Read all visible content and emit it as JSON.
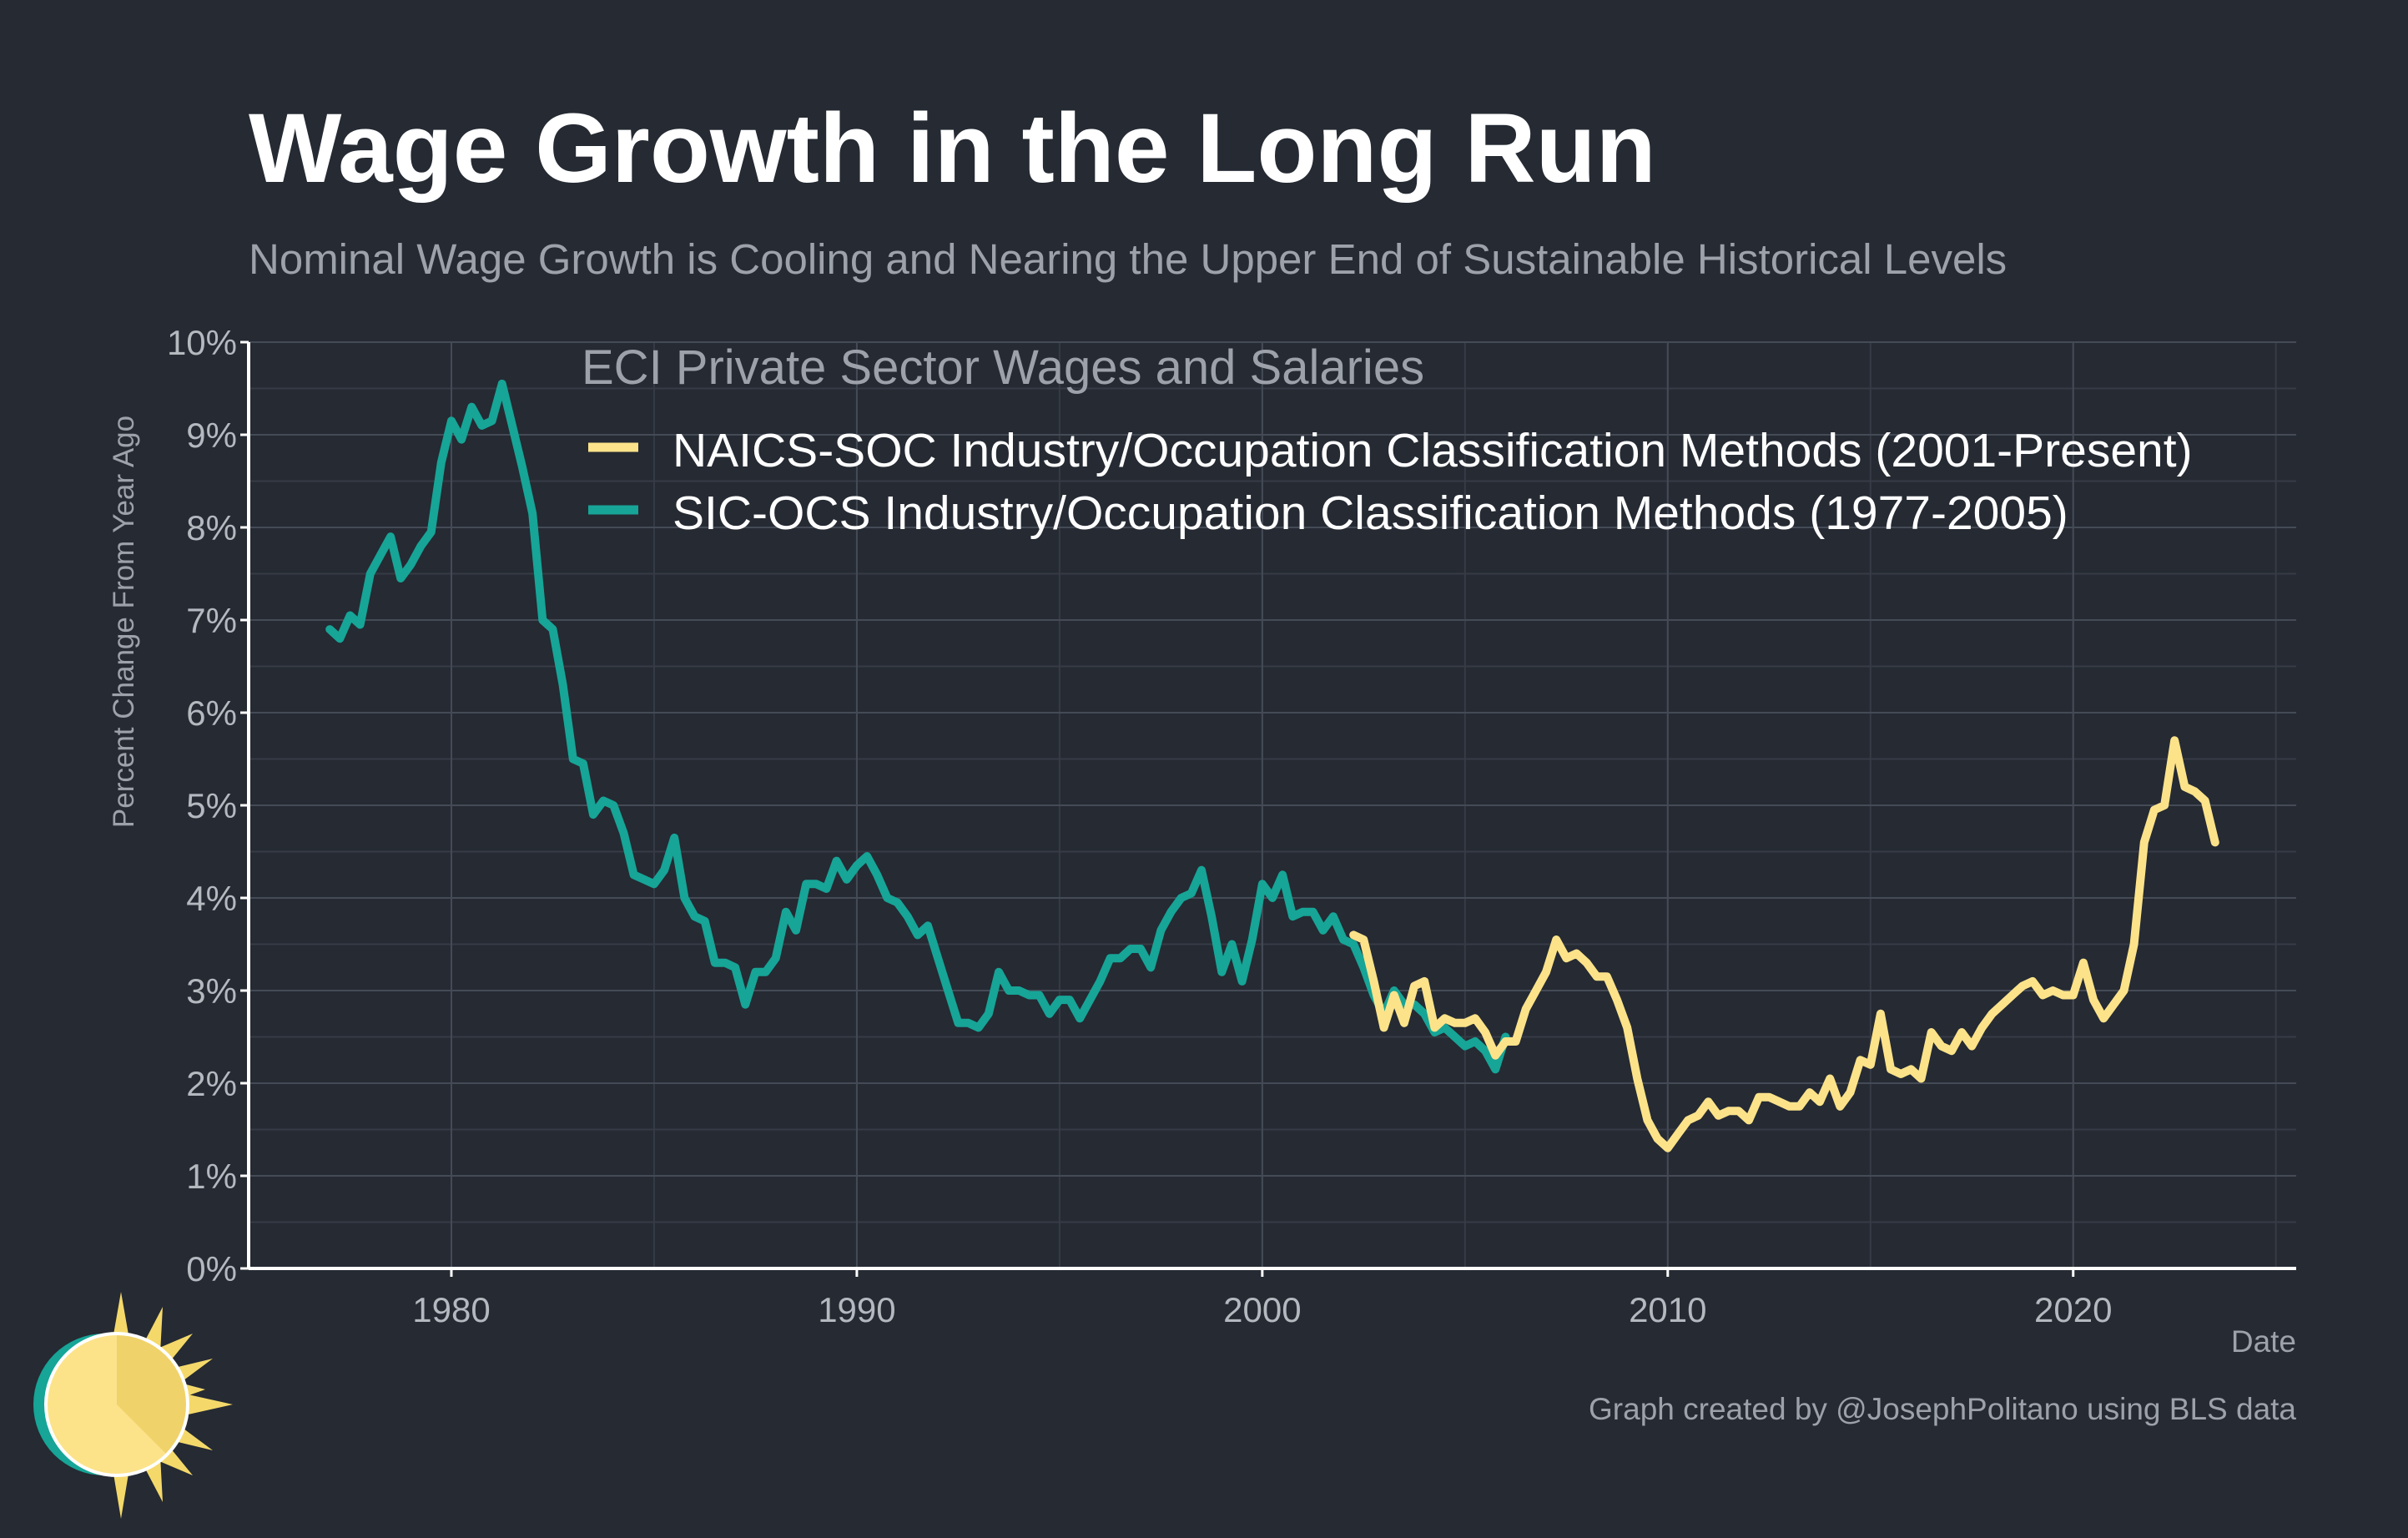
{
  "chart_data": {
    "type": "line",
    "title": "Wage Growth in the Long Run",
    "subtitle": "Nominal Wage Growth is Cooling and Nearing the Upper End of Sustainable Historical Levels",
    "xlabel": "Date",
    "ylabel": "Percent Change From Year Ago",
    "xlim": [
      1975,
      2025.5
    ],
    "ylim": [
      0,
      10
    ],
    "x_ticks": [
      1980,
      1990,
      2000,
      2010,
      2020
    ],
    "x_tick_labels": [
      "1980",
      "1990",
      "2000",
      "2010",
      "2020"
    ],
    "y_ticks": [
      0,
      1,
      2,
      3,
      4,
      5,
      6,
      7,
      8,
      9,
      10
    ],
    "y_tick_labels": [
      "0%",
      "1%",
      "2%",
      "3%",
      "4%",
      "5%",
      "6%",
      "7%",
      "8%",
      "9%",
      "10%"
    ],
    "grid": true,
    "legend_title": "ECI Private Sector Wages and Salaries",
    "legend_position": "top-center",
    "colors": {
      "background": "#252a33",
      "grid": "#454b56",
      "axis": "#ffffff",
      "tick_text": "#b4b8bf",
      "muted_text": "#9da2aa"
    },
    "series": [
      {
        "name": "NAICS-SOC Industry/Occupation Classification Methods (2001-Present)",
        "color": "#fce38a",
        "points": [
          [
            2002.25,
            3.6
          ],
          [
            2002.5,
            3.55
          ],
          [
            2002.75,
            3.1
          ],
          [
            2003.0,
            2.6
          ],
          [
            2003.25,
            2.95
          ],
          [
            2003.5,
            2.65
          ],
          [
            2003.75,
            3.05
          ],
          [
            2004.0,
            3.1
          ],
          [
            2004.25,
            2.6
          ],
          [
            2004.5,
            2.7
          ],
          [
            2004.75,
            2.65
          ],
          [
            2005.0,
            2.65
          ],
          [
            2005.25,
            2.7
          ],
          [
            2005.5,
            2.55
          ],
          [
            2005.75,
            2.3
          ],
          [
            2006.0,
            2.45
          ],
          [
            2006.25,
            2.45
          ],
          [
            2006.5,
            2.8
          ],
          [
            2006.75,
            3.0
          ],
          [
            2007.0,
            3.2
          ],
          [
            2007.25,
            3.55
          ],
          [
            2007.5,
            3.35
          ],
          [
            2007.75,
            3.4
          ],
          [
            2008.0,
            3.3
          ],
          [
            2008.25,
            3.15
          ],
          [
            2008.5,
            3.15
          ],
          [
            2008.75,
            2.9
          ],
          [
            2009.0,
            2.6
          ],
          [
            2009.25,
            2.05
          ],
          [
            2009.5,
            1.6
          ],
          [
            2009.75,
            1.4
          ],
          [
            2010.0,
            1.3
          ],
          [
            2010.25,
            1.45
          ],
          [
            2010.5,
            1.6
          ],
          [
            2010.75,
            1.65
          ],
          [
            2011.0,
            1.8
          ],
          [
            2011.25,
            1.65
          ],
          [
            2011.5,
            1.7
          ],
          [
            2011.75,
            1.7
          ],
          [
            2012.0,
            1.6
          ],
          [
            2012.25,
            1.85
          ],
          [
            2012.5,
            1.85
          ],
          [
            2012.75,
            1.8
          ],
          [
            2013.0,
            1.75
          ],
          [
            2013.25,
            1.75
          ],
          [
            2013.5,
            1.9
          ],
          [
            2013.75,
            1.8
          ],
          [
            2014.0,
            2.05
          ],
          [
            2014.25,
            1.75
          ],
          [
            2014.5,
            1.9
          ],
          [
            2014.75,
            2.25
          ],
          [
            2015.0,
            2.2
          ],
          [
            2015.25,
            2.75
          ],
          [
            2015.5,
            2.15
          ],
          [
            2015.75,
            2.1
          ],
          [
            2016.0,
            2.15
          ],
          [
            2016.25,
            2.05
          ],
          [
            2016.5,
            2.55
          ],
          [
            2016.75,
            2.4
          ],
          [
            2017.0,
            2.35
          ],
          [
            2017.25,
            2.55
          ],
          [
            2017.5,
            2.4
          ],
          [
            2017.75,
            2.6
          ],
          [
            2018.0,
            2.75
          ],
          [
            2018.25,
            2.85
          ],
          [
            2018.5,
            2.95
          ],
          [
            2018.75,
            3.05
          ],
          [
            2019.0,
            3.1
          ],
          [
            2019.25,
            2.95
          ],
          [
            2019.5,
            3.0
          ],
          [
            2019.75,
            2.95
          ],
          [
            2020.0,
            2.95
          ],
          [
            2020.25,
            3.3
          ],
          [
            2020.5,
            2.9
          ],
          [
            2020.75,
            2.7
          ],
          [
            2021.0,
            2.85
          ],
          [
            2021.25,
            3.0
          ],
          [
            2021.5,
            3.5
          ],
          [
            2021.75,
            4.6
          ],
          [
            2022.0,
            4.95
          ],
          [
            2022.25,
            5.0
          ],
          [
            2022.5,
            5.7
          ],
          [
            2022.75,
            5.2
          ],
          [
            2023.0,
            5.15
          ],
          [
            2023.25,
            5.05
          ],
          [
            2023.5,
            4.6
          ]
        ]
      },
      {
        "name": "SIC-OCS Industry/Occupation Classification Methods (1977-2005)",
        "color": "#16a597",
        "points": [
          [
            1977.0,
            6.9
          ],
          [
            1977.25,
            6.8
          ],
          [
            1977.5,
            7.05
          ],
          [
            1977.75,
            6.95
          ],
          [
            1978.0,
            7.5
          ],
          [
            1978.25,
            7.7
          ],
          [
            1978.5,
            7.9
          ],
          [
            1978.75,
            7.45
          ],
          [
            1979.0,
            7.6
          ],
          [
            1979.25,
            7.8
          ],
          [
            1979.5,
            7.95
          ],
          [
            1979.75,
            8.7
          ],
          [
            1980.0,
            9.15
          ],
          [
            1980.25,
            8.95
          ],
          [
            1980.5,
            9.3
          ],
          [
            1980.75,
            9.1
          ],
          [
            1981.0,
            9.15
          ],
          [
            1981.25,
            9.55
          ],
          [
            1981.5,
            9.1
          ],
          [
            1981.75,
            8.65
          ],
          [
            1982.0,
            8.15
          ],
          [
            1982.25,
            7.0
          ],
          [
            1982.5,
            6.9
          ],
          [
            1982.75,
            6.3
          ],
          [
            1983.0,
            5.5
          ],
          [
            1983.25,
            5.45
          ],
          [
            1983.5,
            4.9
          ],
          [
            1983.75,
            5.05
          ],
          [
            1984.0,
            5.0
          ],
          [
            1984.25,
            4.7
          ],
          [
            1984.5,
            4.25
          ],
          [
            1984.75,
            4.2
          ],
          [
            1985.0,
            4.15
          ],
          [
            1985.25,
            4.3
          ],
          [
            1985.5,
            4.65
          ],
          [
            1985.75,
            4.0
          ],
          [
            1986.0,
            3.8
          ],
          [
            1986.25,
            3.75
          ],
          [
            1986.5,
            3.3
          ],
          [
            1986.75,
            3.3
          ],
          [
            1987.0,
            3.25
          ],
          [
            1987.25,
            2.85
          ],
          [
            1987.5,
            3.2
          ],
          [
            1987.75,
            3.2
          ],
          [
            1988.0,
            3.35
          ],
          [
            1988.25,
            3.85
          ],
          [
            1988.5,
            3.65
          ],
          [
            1988.75,
            4.15
          ],
          [
            1989.0,
            4.15
          ],
          [
            1989.25,
            4.1
          ],
          [
            1989.5,
            4.4
          ],
          [
            1989.75,
            4.2
          ],
          [
            1990.0,
            4.35
          ],
          [
            1990.25,
            4.45
          ],
          [
            1990.5,
            4.25
          ],
          [
            1990.75,
            4.0
          ],
          [
            1991.0,
            3.95
          ],
          [
            1991.25,
            3.8
          ],
          [
            1991.5,
            3.6
          ],
          [
            1991.75,
            3.7
          ],
          [
            1992.0,
            3.35
          ],
          [
            1992.25,
            3.0
          ],
          [
            1992.5,
            2.65
          ],
          [
            1992.75,
            2.65
          ],
          [
            1993.0,
            2.6
          ],
          [
            1993.25,
            2.75
          ],
          [
            1993.5,
            3.2
          ],
          [
            1993.75,
            3.0
          ],
          [
            1994.0,
            3.0
          ],
          [
            1994.25,
            2.95
          ],
          [
            1994.5,
            2.95
          ],
          [
            1994.75,
            2.75
          ],
          [
            1995.0,
            2.9
          ],
          [
            1995.25,
            2.9
          ],
          [
            1995.5,
            2.7
          ],
          [
            1995.75,
            2.9
          ],
          [
            1996.0,
            3.1
          ],
          [
            1996.25,
            3.35
          ],
          [
            1996.5,
            3.35
          ],
          [
            1996.75,
            3.45
          ],
          [
            1997.0,
            3.45
          ],
          [
            1997.25,
            3.25
          ],
          [
            1997.5,
            3.65
          ],
          [
            1997.75,
            3.85
          ],
          [
            1998.0,
            4.0
          ],
          [
            1998.25,
            4.05
          ],
          [
            1998.5,
            4.3
          ],
          [
            1998.75,
            3.8
          ],
          [
            1999.0,
            3.2
          ],
          [
            1999.25,
            3.5
          ],
          [
            1999.5,
            3.1
          ],
          [
            1999.75,
            3.55
          ],
          [
            2000.0,
            4.15
          ],
          [
            2000.25,
            4.0
          ],
          [
            2000.5,
            4.25
          ],
          [
            2000.75,
            3.8
          ],
          [
            2001.0,
            3.85
          ],
          [
            2001.25,
            3.85
          ],
          [
            2001.5,
            3.65
          ],
          [
            2001.75,
            3.8
          ],
          [
            2002.0,
            3.55
          ],
          [
            2002.25,
            3.5
          ],
          [
            2002.5,
            3.25
          ],
          [
            2002.75,
            2.95
          ],
          [
            2003.0,
            2.75
          ],
          [
            2003.25,
            3.0
          ],
          [
            2003.5,
            2.85
          ],
          [
            2003.75,
            2.85
          ],
          [
            2004.0,
            2.75
          ],
          [
            2004.25,
            2.55
          ],
          [
            2004.5,
            2.6
          ],
          [
            2004.75,
            2.5
          ],
          [
            2005.0,
            2.4
          ],
          [
            2005.25,
            2.45
          ],
          [
            2005.5,
            2.35
          ],
          [
            2005.75,
            2.15
          ],
          [
            2006.0,
            2.5
          ]
        ]
      }
    ]
  },
  "credit": "Graph created by @JosephPolitano using BLS data",
  "logo_icon": "sun-logo-icon"
}
